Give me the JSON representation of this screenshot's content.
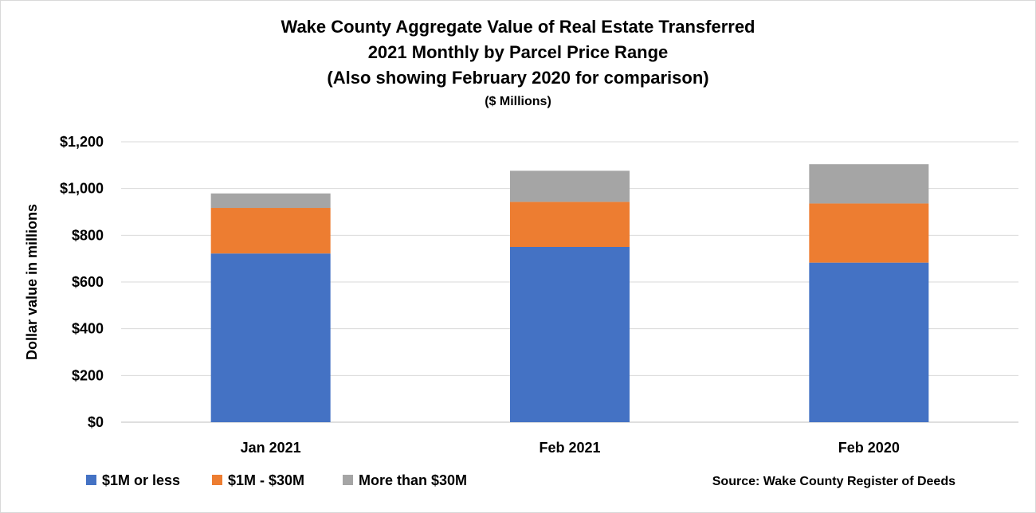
{
  "chart_data": {
    "type": "bar",
    "stacked": true,
    "title": "Wake County Aggregate Value of Real Estate Transferred",
    "title_line2": "2021 Monthly by Parcel Price Range",
    "title_line3": "(Also showing February 2020 for comparison)",
    "subtitle": "($ Millions)",
    "xlabel": "",
    "ylabel": "Dollar value in millions",
    "ylim": [
      0,
      1200
    ],
    "yticks": [
      0,
      200,
      400,
      600,
      800,
      1000,
      1200
    ],
    "ytick_labels": [
      "$0",
      "$200",
      "$400",
      "$600",
      "$800",
      "$1,000",
      "$1,200"
    ],
    "categories": [
      "Jan 2021",
      "Feb 2021",
      "Feb 2020"
    ],
    "series": [
      {
        "name": "$1M or less",
        "color": "#4472c4",
        "values": [
          722,
          750,
          683
        ]
      },
      {
        "name": "$1M - $30M",
        "color": "#ed7d31",
        "values": [
          195,
          193,
          253
        ]
      },
      {
        "name": "More than $30M",
        "color": "#a5a5a5",
        "values": [
          62,
          133,
          168
        ]
      }
    ],
    "grid": true,
    "legend_position": "bottom-left",
    "source": "Source: Wake County Register of Deeds"
  }
}
